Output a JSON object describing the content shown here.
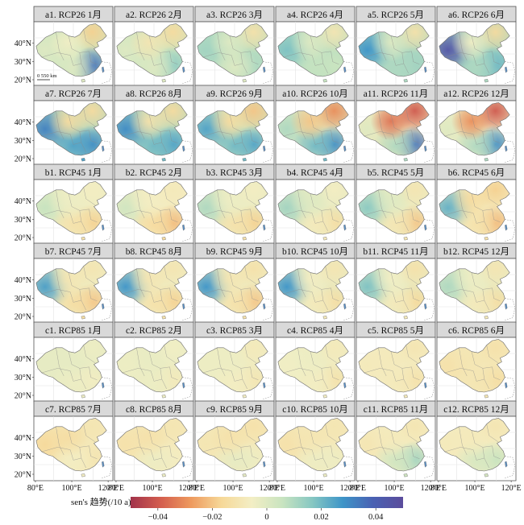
{
  "colorbar": {
    "label": "sen's 趋势(/10 a)",
    "ticks": [
      "−0.04",
      "−0.02",
      "0",
      "0.02",
      "0.04"
    ],
    "tick_values": [
      -0.04,
      -0.02,
      0,
      0.02,
      0.04
    ],
    "range": [
      -0.05,
      0.05
    ],
    "colors": [
      "#a2334b",
      "#d45e4e",
      "#ee9a5e",
      "#f6d898",
      "#f3eec4",
      "#c9e4c0",
      "#86c7c2",
      "#3d95c8",
      "#4961b3",
      "#5b4c9c"
    ]
  },
  "axes": {
    "lat_ticks": [
      "40°N",
      "30°N",
      "20°N"
    ],
    "lon_ticks": [
      "80°E",
      "100°E",
      "120°E"
    ],
    "lon_ticks_last": [
      "80°E",
      "100°E",
      "120°E"
    ]
  },
  "scalebar": {
    "text": "0 550 km"
  },
  "panels": [
    {
      "label": "a1. RCP26 1月",
      "tone": {
        "base": 0.005,
        "W": 0.0,
        "NE": -0.018,
        "SE": 0.035,
        "S": 0.0,
        "N": -0.005
      }
    },
    {
      "label": "a2. RCP26 2月",
      "tone": {
        "base": 0.005,
        "W": 0.0,
        "NE": -0.015,
        "SE": 0.015,
        "S": 0.0,
        "N": -0.01
      }
    },
    {
      "label": "a3. RCP26 3月",
      "tone": {
        "base": 0.008,
        "W": 0.012,
        "NE": -0.012,
        "SE": 0.01,
        "S": 0.0,
        "N": 0.0
      }
    },
    {
      "label": "a4. RCP26 4月",
      "tone": {
        "base": 0.008,
        "W": 0.018,
        "NE": -0.01,
        "SE": 0.005,
        "S": 0.006,
        "N": 0.0
      }
    },
    {
      "label": "a5. RCP26 5月",
      "tone": {
        "base": 0.01,
        "W": 0.028,
        "NE": -0.012,
        "SE": 0.012,
        "S": 0.01,
        "N": 0.0
      }
    },
    {
      "label": "a6. RCP26 6月",
      "tone": {
        "base": 0.012,
        "W": 0.045,
        "NE": -0.015,
        "SE": 0.02,
        "S": 0.01,
        "N": -0.005
      }
    },
    {
      "label": "a7. RCP26 7月",
      "tone": {
        "base": 0.01,
        "W": 0.032,
        "NE": -0.015,
        "SE": 0.03,
        "S": 0.025,
        "N": -0.015
      }
    },
    {
      "label": "a8. RCP26 8月",
      "tone": {
        "base": 0.01,
        "W": 0.03,
        "NE": -0.015,
        "SE": 0.025,
        "S": 0.02,
        "N": -0.012
      }
    },
    {
      "label": "a9. RCP26 9月",
      "tone": {
        "base": 0.005,
        "W": 0.025,
        "NE": -0.02,
        "SE": 0.025,
        "S": 0.02,
        "N": -0.015
      }
    },
    {
      "label": "a10. RCP26 10月",
      "tone": {
        "base": 0.0,
        "W": 0.01,
        "NE": -0.03,
        "SE": 0.03,
        "S": 0.02,
        "N": -0.02
      }
    },
    {
      "label": "a11. RCP26 11月",
      "tone": {
        "base": -0.008,
        "W": 0.0,
        "NE": -0.04,
        "SE": 0.035,
        "S": 0.01,
        "N": -0.035
      }
    },
    {
      "label": "a12. RCP26 12月",
      "tone": {
        "base": -0.005,
        "W": 0.0,
        "NE": -0.04,
        "SE": 0.03,
        "S": 0.01,
        "N": -0.03
      }
    },
    {
      "label": "b1. RCP45 1月",
      "tone": {
        "base": -0.004,
        "W": 0.006,
        "NE": -0.006,
        "SE": -0.018,
        "S": -0.012,
        "N": -0.004
      }
    },
    {
      "label": "b2. RCP45 2月",
      "tone": {
        "base": -0.006,
        "W": 0.004,
        "NE": -0.008,
        "SE": -0.022,
        "S": -0.015,
        "N": -0.006
      }
    },
    {
      "label": "b3. RCP45 3月",
      "tone": {
        "base": -0.003,
        "W": 0.01,
        "NE": -0.006,
        "SE": -0.018,
        "S": -0.012,
        "N": -0.004
      }
    },
    {
      "label": "b4. RCP45 4月",
      "tone": {
        "base": -0.002,
        "W": 0.012,
        "NE": -0.006,
        "SE": -0.014,
        "S": -0.008,
        "N": 0.0
      }
    },
    {
      "label": "b5. RCP45 5月",
      "tone": {
        "base": -0.003,
        "W": 0.016,
        "NE": -0.01,
        "SE": -0.02,
        "S": -0.01,
        "N": 0.0
      }
    },
    {
      "label": "b6. RCP45 6月",
      "tone": {
        "base": -0.006,
        "W": 0.022,
        "NE": -0.018,
        "SE": -0.022,
        "S": -0.012,
        "N": -0.015
      }
    },
    {
      "label": "b7. RCP45 7月",
      "tone": {
        "base": -0.004,
        "W": 0.026,
        "NE": -0.01,
        "SE": -0.02,
        "S": -0.014,
        "N": -0.01
      }
    },
    {
      "label": "b8. RCP45 8月",
      "tone": {
        "base": -0.004,
        "W": 0.028,
        "NE": -0.01,
        "SE": -0.018,
        "S": -0.012,
        "N": -0.01
      }
    },
    {
      "label": "b9. RCP45 9月",
      "tone": {
        "base": -0.004,
        "W": 0.028,
        "NE": -0.012,
        "SE": -0.02,
        "S": -0.012,
        "N": -0.01
      }
    },
    {
      "label": "b10. RCP45 10月",
      "tone": {
        "base": -0.002,
        "W": 0.028,
        "NE": -0.01,
        "SE": -0.014,
        "S": -0.008,
        "N": -0.006
      }
    },
    {
      "label": "b11. RCP45 11月",
      "tone": {
        "base": -0.002,
        "W": 0.018,
        "NE": -0.012,
        "SE": -0.016,
        "S": -0.008,
        "N": -0.005
      }
    },
    {
      "label": "b12. RCP45 12月",
      "tone": {
        "base": -0.002,
        "W": 0.01,
        "NE": -0.01,
        "SE": -0.014,
        "S": -0.008,
        "N": -0.004
      }
    },
    {
      "label": "c1. RCP85 1月",
      "tone": {
        "base": -0.002,
        "W": -0.002,
        "NE": -0.004,
        "SE": -0.006,
        "S": -0.004,
        "N": -0.002
      }
    },
    {
      "label": "c2. RCP85 2月",
      "tone": {
        "base": -0.003,
        "W": -0.004,
        "NE": -0.005,
        "SE": -0.008,
        "S": -0.004,
        "N": -0.003
      }
    },
    {
      "label": "c3. RCP85 3月",
      "tone": {
        "base": -0.004,
        "W": -0.004,
        "NE": -0.008,
        "SE": -0.01,
        "S": -0.006,
        "N": -0.004
      }
    },
    {
      "label": "c4. RCP85 4月",
      "tone": {
        "base": -0.004,
        "W": -0.005,
        "NE": -0.008,
        "SE": -0.012,
        "S": -0.006,
        "N": -0.004
      }
    },
    {
      "label": "c5. RCP85 5月",
      "tone": {
        "base": -0.006,
        "W": -0.008,
        "NE": -0.01,
        "SE": -0.012,
        "S": -0.008,
        "N": -0.008
      }
    },
    {
      "label": "c6. RCP85 6月",
      "tone": {
        "base": -0.008,
        "W": -0.012,
        "NE": -0.012,
        "SE": -0.014,
        "S": -0.01,
        "N": -0.01
      }
    },
    {
      "label": "c7. RCP85 7月",
      "tone": {
        "base": -0.008,
        "W": -0.016,
        "NE": -0.01,
        "SE": -0.01,
        "S": -0.006,
        "N": -0.014
      }
    },
    {
      "label": "c8. RCP85 8月",
      "tone": {
        "base": -0.008,
        "W": -0.012,
        "NE": -0.01,
        "SE": -0.006,
        "S": -0.004,
        "N": -0.012
      }
    },
    {
      "label": "c9. RCP85 9月",
      "tone": {
        "base": -0.008,
        "W": -0.01,
        "NE": -0.012,
        "SE": -0.004,
        "S": -0.002,
        "N": -0.012
      }
    },
    {
      "label": "c10. RCP85 10月",
      "tone": {
        "base": -0.008,
        "W": -0.012,
        "NE": -0.01,
        "SE": -0.004,
        "S": -0.004,
        "N": -0.01
      }
    },
    {
      "label": "c11. RCP85 11月",
      "tone": {
        "base": -0.006,
        "W": -0.01,
        "NE": -0.01,
        "SE": 0.012,
        "S": 0.004,
        "N": -0.008
      }
    },
    {
      "label": "c12. RCP85 12月",
      "tone": {
        "base": -0.006,
        "W": -0.008,
        "NE": -0.01,
        "SE": 0.006,
        "S": 0.002,
        "N": -0.008
      }
    }
  ]
}
